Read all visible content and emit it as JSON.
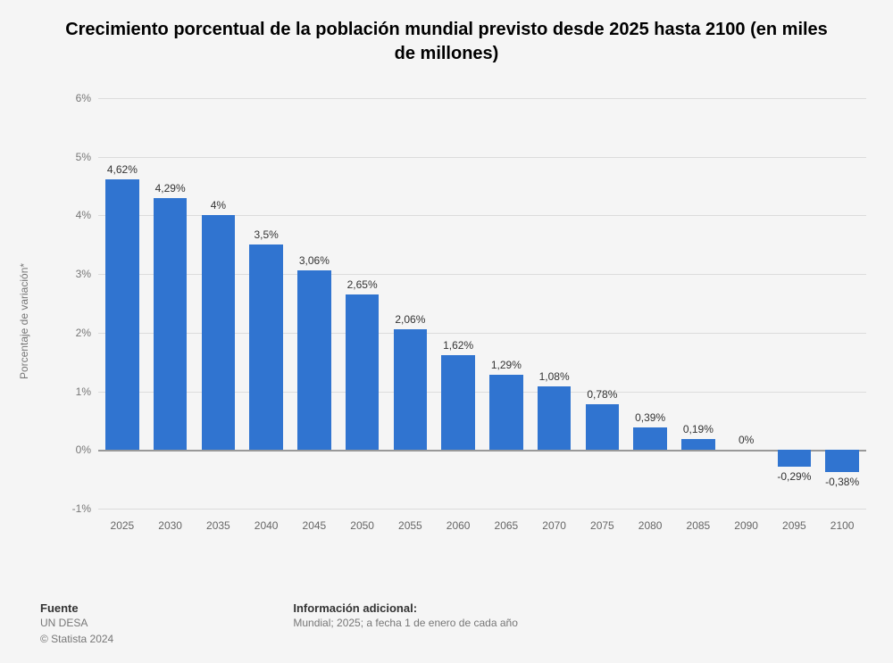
{
  "title": "Crecimiento porcentual de la población mundial previsto desde 2025 hasta 2100 (en miles de millones)",
  "y_axis_label": "Porcentaje de variación*",
  "chart": {
    "type": "bar",
    "categories": [
      "2025",
      "2030",
      "2035",
      "2040",
      "2045",
      "2050",
      "2055",
      "2060",
      "2065",
      "2070",
      "2075",
      "2080",
      "2085",
      "2090",
      "2095",
      "2100"
    ],
    "values": [
      4.62,
      4.29,
      4.0,
      3.5,
      3.06,
      2.65,
      2.06,
      1.62,
      1.29,
      1.08,
      0.78,
      0.39,
      0.19,
      0.0,
      -0.29,
      -0.38
    ],
    "value_labels": [
      "4,62%",
      "4,29%",
      "4%",
      "3,5%",
      "3,06%",
      "2,65%",
      "2,06%",
      "1,62%",
      "1,29%",
      "1,08%",
      "0,78%",
      "0,39%",
      "0,19%",
      "0%",
      "-0,29%",
      "-0,38%"
    ],
    "bar_color": "#3074d0",
    "background_color": "#f5f5f5",
    "grid_color": "#dcdcdc",
    "zero_line_color": "#999999",
    "ylim": [
      -1,
      6
    ],
    "ytick_step": 1,
    "y_ticks": [
      "-1%",
      "0%",
      "1%",
      "2%",
      "3%",
      "4%",
      "5%",
      "6%"
    ],
    "bar_width_ratio": 0.7,
    "title_fontsize": 20,
    "tick_fontsize": 12,
    "label_fontsize": 12
  },
  "footer": {
    "source_heading": "Fuente",
    "source_text": "UN DESA",
    "copyright": "© Statista 2024",
    "info_heading": "Información adicional:",
    "info_text": "Mundial; 2025; a fecha 1 de enero de cada año"
  }
}
